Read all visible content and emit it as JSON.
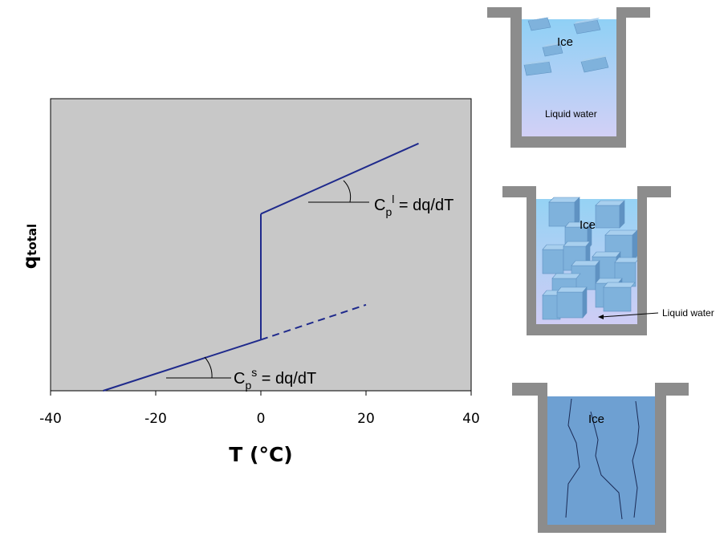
{
  "chart_data": {
    "type": "line",
    "xlabel": "T (°C)",
    "ylabel": "q",
    "ylabel_sub": "total",
    "xlim": [
      -40,
      40
    ],
    "x_ticks": [
      "-40",
      "-20",
      "0",
      "20",
      "40"
    ],
    "grid": false,
    "background": "#c8c8c8",
    "line_color": "#1f2a8c",
    "series": [
      {
        "style": "solid",
        "x": [
          -30,
          0
        ],
        "y": [
          0.0,
          0.95
        ]
      },
      {
        "style": "solid",
        "x": [
          0,
          0
        ],
        "y": [
          0.95,
          3.29
        ]
      },
      {
        "style": "solid",
        "x": [
          0,
          30
        ],
        "y": [
          3.29,
          4.6
        ]
      },
      {
        "style": "dashed",
        "x": [
          0,
          20
        ],
        "y": [
          0.95,
          1.6
        ]
      }
    ],
    "annotations": {
      "liquid": {
        "base": "C",
        "sub": "p",
        "sup": "l",
        "text": " = dq/dT"
      },
      "solid": {
        "base": "C",
        "sub": "p",
        "sup": "s",
        "text": " = dq/dT"
      }
    }
  },
  "containers": {
    "top": {
      "ice_label": "Ice",
      "liquid_label": "Liquid water"
    },
    "middle": {
      "ice_label": "Ice",
      "liquid_label": "Liquid water"
    },
    "bottom": {
      "ice_label": "Ice"
    }
  },
  "colors": {
    "container": "#8c8c8c",
    "ice_cube": "#7fb2dc",
    "frozen": "#6ea0d2"
  }
}
